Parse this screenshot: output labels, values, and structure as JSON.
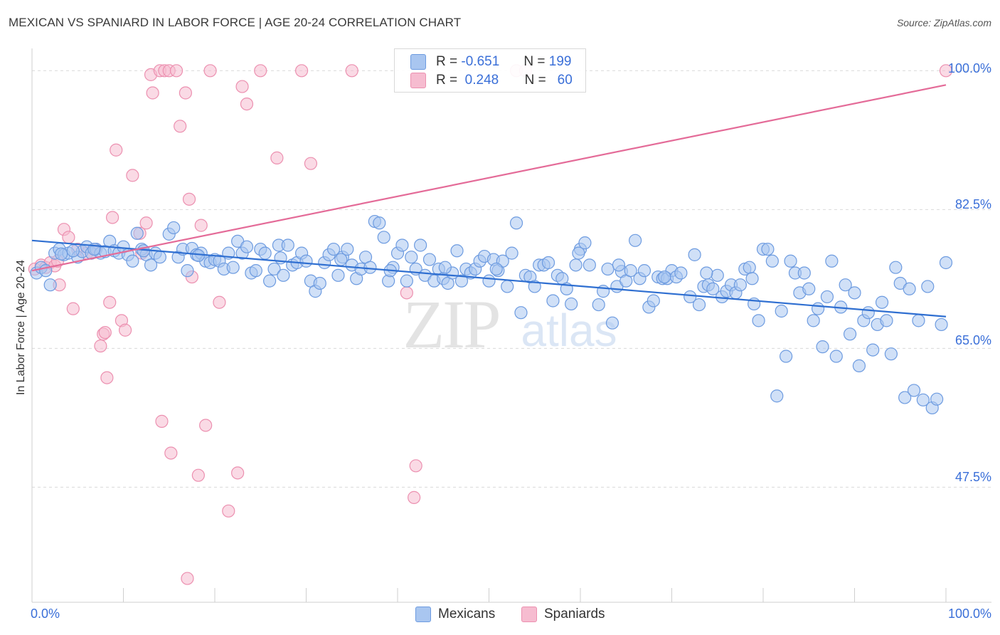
{
  "header": {
    "title": "MEXICAN VS SPANIARD IN LABOR FORCE | AGE 20-24 CORRELATION CHART",
    "source": "Source: ZipAtlas.com"
  },
  "watermark": {
    "zip": "ZIP",
    "atlas": "atlas"
  },
  "legend": {
    "r_label": "R =",
    "n_label": "N =",
    "mexicans": {
      "r": "-0.651",
      "n": "199"
    },
    "spaniards": {
      "r": "0.248",
      "n": "60"
    }
  },
  "colors": {
    "mexican_fill": "#a9c6f0",
    "mexican_stroke": "#6d9be0",
    "mexican_line": "#2f6fd1",
    "spaniard_fill": "#f6bcd0",
    "spaniard_stroke": "#ec90b0",
    "spaniard_line": "#e46b98",
    "tick_text": "#3a6fd8",
    "grid": "#d9d9d9"
  },
  "chart_data": {
    "type": "scatter",
    "title": "MEXICAN VS SPANIARD IN LABOR FORCE | AGE 20-24 CORRELATION CHART",
    "xlabel": "",
    "ylabel": "In Labor Force | Age 20-24",
    "x_tick_labels": [
      "0.0%",
      "100.0%"
    ],
    "y_tick_labels": [
      "47.5%",
      "65.0%",
      "82.5%",
      "100.0%"
    ],
    "xlim": [
      0,
      100
    ],
    "ylim": [
      33,
      102
    ],
    "y_grid": [
      47.5,
      65.0,
      82.5,
      100.0
    ],
    "grid": true,
    "legend_position": "top-center",
    "series": [
      {
        "name": "Mexicans",
        "color": "#a9c6f0",
        "trend": {
          "x": [
            0,
            100
          ],
          "y": [
            78.6,
            69.0
          ]
        },
        "points": [
          [
            0.5,
            74.5
          ],
          [
            1.0,
            75.2
          ],
          [
            1.5,
            74.8
          ],
          [
            2.0,
            73.0
          ],
          [
            2.5,
            77.0
          ],
          [
            3.0,
            77.5
          ],
          [
            3.5,
            76.8
          ],
          [
            4.0,
            77.0
          ],
          [
            5.0,
            76.5
          ],
          [
            5.5,
            77.2
          ],
          [
            6.0,
            77.8
          ],
          [
            6.5,
            77.0
          ],
          [
            7.0,
            77.5
          ],
          [
            7.5,
            77.0
          ],
          [
            8.0,
            77.2
          ],
          [
            8.5,
            78.5
          ],
          [
            9.0,
            77.3
          ],
          [
            9.5,
            77.0
          ],
          [
            10.0,
            77.8
          ],
          [
            10.5,
            76.8
          ],
          [
            11.0,
            76.0
          ],
          [
            11.5,
            79.5
          ],
          [
            12.0,
            77.5
          ],
          [
            12.5,
            76.8
          ],
          [
            13.0,
            75.5
          ],
          [
            13.5,
            77.0
          ],
          [
            14.0,
            76.5
          ],
          [
            15.0,
            79.4
          ],
          [
            15.5,
            80.2
          ],
          [
            16.0,
            76.5
          ],
          [
            16.5,
            77.5
          ],
          [
            17.0,
            74.8
          ],
          [
            17.5,
            77.6
          ],
          [
            18.0,
            76.8
          ],
          [
            18.5,
            77.0
          ],
          [
            19.0,
            76.0
          ],
          [
            19.5,
            75.8
          ],
          [
            20.0,
            76.2
          ],
          [
            20.5,
            76.0
          ],
          [
            21.0,
            75.0
          ],
          [
            21.5,
            77.0
          ],
          [
            22.0,
            75.2
          ],
          [
            22.5,
            78.5
          ],
          [
            23.0,
            77.0
          ],
          [
            23.5,
            77.8
          ],
          [
            24.0,
            74.5
          ],
          [
            24.5,
            74.8
          ],
          [
            25.0,
            77.5
          ],
          [
            25.5,
            77.0
          ],
          [
            26.0,
            73.5
          ],
          [
            26.5,
            75.0
          ],
          [
            27.0,
            78.0
          ],
          [
            27.5,
            74.2
          ],
          [
            28.0,
            78.0
          ],
          [
            28.5,
            75.5
          ],
          [
            29.0,
            75.8
          ],
          [
            29.5,
            77.0
          ],
          [
            30.0,
            76.0
          ],
          [
            30.5,
            73.5
          ],
          [
            31.0,
            72.2
          ],
          [
            31.5,
            73.2
          ],
          [
            32.0,
            75.8
          ],
          [
            32.5,
            76.8
          ],
          [
            33.0,
            77.5
          ],
          [
            33.5,
            74.2
          ],
          [
            34.0,
            76.5
          ],
          [
            34.5,
            77.5
          ],
          [
            35.0,
            75.5
          ],
          [
            35.5,
            73.8
          ],
          [
            36.0,
            75.0
          ],
          [
            36.5,
            76.5
          ],
          [
            37.0,
            75.2
          ],
          [
            37.5,
            81.0
          ],
          [
            38.0,
            80.8
          ],
          [
            38.5,
            79.0
          ],
          [
            39.0,
            73.5
          ],
          [
            39.5,
            75.2
          ],
          [
            40.0,
            77.0
          ],
          [
            40.5,
            78.0
          ],
          [
            41.0,
            73.5
          ],
          [
            41.5,
            76.5
          ],
          [
            42.0,
            75.0
          ],
          [
            42.5,
            78.0
          ],
          [
            43.0,
            74.2
          ],
          [
            43.5,
            76.2
          ],
          [
            44.0,
            73.5
          ],
          [
            44.5,
            75.0
          ],
          [
            45.0,
            73.8
          ],
          [
            45.5,
            73.2
          ],
          [
            46.0,
            74.5
          ],
          [
            46.5,
            77.3
          ],
          [
            47.0,
            73.5
          ],
          [
            47.5,
            75.0
          ],
          [
            48.0,
            74.5
          ],
          [
            48.5,
            75.0
          ],
          [
            49.0,
            76.0
          ],
          [
            49.5,
            76.6
          ],
          [
            50.0,
            73.5
          ],
          [
            50.5,
            76.2
          ],
          [
            51.0,
            74.8
          ],
          [
            51.5,
            76.0
          ],
          [
            52.0,
            72.8
          ],
          [
            52.5,
            77.0
          ],
          [
            53.0,
            80.8
          ],
          [
            53.5,
            69.5
          ],
          [
            54.0,
            74.2
          ],
          [
            54.5,
            74.0
          ],
          [
            55.0,
            72.8
          ],
          [
            55.5,
            75.5
          ],
          [
            56.0,
            75.5
          ],
          [
            56.5,
            75.8
          ],
          [
            57.0,
            71.0
          ],
          [
            57.5,
            74.2
          ],
          [
            58.0,
            73.8
          ],
          [
            58.5,
            72.5
          ],
          [
            59.0,
            70.6
          ],
          [
            59.5,
            75.5
          ],
          [
            60.0,
            77.5
          ],
          [
            60.5,
            78.3
          ],
          [
            61.0,
            75.5
          ],
          [
            62.0,
            70.5
          ],
          [
            62.5,
            72.2
          ],
          [
            63.0,
            75.0
          ],
          [
            63.5,
            68.2
          ],
          [
            64.0,
            72.8
          ],
          [
            64.5,
            74.7
          ],
          [
            65.0,
            73.5
          ],
          [
            65.5,
            74.8
          ],
          [
            66.0,
            78.6
          ],
          [
            66.5,
            73.8
          ],
          [
            67.0,
            74.8
          ],
          [
            67.5,
            70.2
          ],
          [
            68.0,
            71.0
          ],
          [
            68.5,
            74.0
          ],
          [
            69.0,
            73.8
          ],
          [
            69.5,
            73.8
          ],
          [
            70.0,
            74.8
          ],
          [
            70.5,
            74.0
          ],
          [
            71.0,
            74.5
          ],
          [
            72.0,
            71.5
          ],
          [
            72.5,
            76.8
          ],
          [
            73.0,
            70.5
          ],
          [
            73.5,
            72.8
          ],
          [
            74.0,
            73.0
          ],
          [
            74.5,
            72.5
          ],
          [
            75.0,
            74.2
          ],
          [
            75.5,
            71.5
          ],
          [
            76.0,
            72.2
          ],
          [
            76.5,
            73.0
          ],
          [
            77.0,
            72.0
          ],
          [
            77.5,
            73.0
          ],
          [
            78.0,
            75.0
          ],
          [
            78.5,
            75.2
          ],
          [
            79.0,
            70.6
          ],
          [
            79.5,
            68.5
          ],
          [
            80.0,
            77.5
          ],
          [
            80.5,
            77.5
          ],
          [
            81.0,
            76.0
          ],
          [
            81.5,
            59.0
          ],
          [
            82.0,
            69.7
          ],
          [
            82.5,
            64.0
          ],
          [
            83.0,
            76.0
          ],
          [
            83.5,
            74.5
          ],
          [
            84.0,
            72.0
          ],
          [
            84.5,
            74.5
          ],
          [
            85.0,
            72.5
          ],
          [
            85.5,
            68.5
          ],
          [
            86.0,
            70.0
          ],
          [
            86.5,
            65.2
          ],
          [
            87.0,
            71.5
          ],
          [
            87.5,
            76.0
          ],
          [
            88.0,
            64.0
          ],
          [
            88.5,
            70.2
          ],
          [
            89.0,
            73.0
          ],
          [
            89.5,
            66.8
          ],
          [
            90.0,
            72.0
          ],
          [
            90.5,
            62.8
          ],
          [
            91.0,
            68.5
          ],
          [
            91.5,
            69.5
          ],
          [
            92.0,
            64.8
          ],
          [
            92.5,
            68.0
          ],
          [
            93.0,
            70.8
          ],
          [
            93.5,
            68.5
          ],
          [
            94.0,
            64.3
          ],
          [
            94.5,
            75.2
          ],
          [
            95.0,
            73.2
          ],
          [
            95.5,
            58.8
          ],
          [
            96.0,
            72.5
          ],
          [
            96.5,
            59.7
          ],
          [
            97.0,
            68.5
          ],
          [
            97.5,
            58.5
          ],
          [
            98.0,
            72.8
          ],
          [
            98.5,
            57.5
          ],
          [
            99.0,
            58.6
          ],
          [
            99.5,
            68.0
          ],
          [
            100.0,
            75.8
          ],
          [
            4.5,
            77.3
          ],
          [
            3.2,
            76.9
          ],
          [
            6.8,
            77.5
          ],
          [
            12.2,
            77.3
          ],
          [
            18.2,
            76.7
          ],
          [
            27.2,
            76.4
          ],
          [
            33.8,
            76.2
          ],
          [
            39.2,
            74.8
          ],
          [
            45.2,
            75.2
          ],
          [
            50.8,
            75.0
          ],
          [
            59.8,
            77.0
          ],
          [
            64.2,
            75.5
          ],
          [
            69.2,
            74.0
          ],
          [
            73.8,
            74.5
          ],
          [
            78.8,
            73.8
          ]
        ]
      },
      {
        "name": "Spaniards",
        "color": "#f6bcd0",
        "trend": {
          "x": [
            0,
            100
          ],
          "y": [
            74.8,
            98.2
          ]
        },
        "points": [
          [
            0.3,
            75.0
          ],
          [
            1.0,
            75.5
          ],
          [
            1.5,
            75.2
          ],
          [
            2.0,
            75.8
          ],
          [
            2.5,
            75.4
          ],
          [
            3.0,
            73.0
          ],
          [
            3.5,
            80.0
          ],
          [
            4.0,
            79.0
          ],
          [
            4.5,
            70.0
          ],
          [
            5.0,
            77.5
          ],
          [
            6.0,
            77.0
          ],
          [
            7.0,
            77.5
          ],
          [
            7.5,
            65.3
          ],
          [
            7.8,
            66.8
          ],
          [
            8.0,
            67.0
          ],
          [
            8.2,
            61.3
          ],
          [
            8.5,
            70.8
          ],
          [
            8.8,
            81.5
          ],
          [
            9.2,
            90.0
          ],
          [
            9.8,
            68.5
          ],
          [
            10.2,
            67.3
          ],
          [
            11.0,
            86.8
          ],
          [
            11.8,
            79.5
          ],
          [
            12.0,
            77.0
          ],
          [
            12.5,
            80.8
          ],
          [
            13.0,
            99.5
          ],
          [
            13.2,
            97.2
          ],
          [
            14.0,
            100.0
          ],
          [
            14.2,
            55.8
          ],
          [
            14.5,
            100.0
          ],
          [
            15.0,
            100.0
          ],
          [
            15.2,
            51.8
          ],
          [
            15.8,
            100.0
          ],
          [
            16.2,
            93.0
          ],
          [
            16.8,
            97.2
          ],
          [
            17.0,
            36.0
          ],
          [
            17.2,
            83.8
          ],
          [
            17.5,
            74.0
          ],
          [
            18.2,
            49.0
          ],
          [
            18.5,
            80.5
          ],
          [
            19.0,
            55.3
          ],
          [
            19.5,
            100.0
          ],
          [
            20.5,
            70.8
          ],
          [
            21.5,
            44.5
          ],
          [
            22.5,
            49.3
          ],
          [
            23.0,
            98.0
          ],
          [
            23.5,
            95.8
          ],
          [
            25.0,
            100.0
          ],
          [
            26.8,
            89.0
          ],
          [
            29.5,
            100.0
          ],
          [
            30.5,
            88.3
          ],
          [
            35.0,
            100.0
          ],
          [
            41.0,
            72.0
          ],
          [
            41.8,
            46.2
          ],
          [
            42.0,
            50.2
          ],
          [
            53.0,
            100.0
          ],
          [
            54.0,
            100.0
          ],
          [
            100.0,
            100.0
          ],
          [
            6.5,
            77.0
          ],
          [
            2.8,
            76.0
          ]
        ]
      }
    ]
  },
  "bottom_legend": {
    "mexicans": "Mexicans",
    "spaniards": "Spaniards"
  },
  "axis": {
    "x_left": "0.0%",
    "x_right": "100.0%",
    "y_ticks": [
      "47.5%",
      "65.0%",
      "82.5%",
      "100.0%"
    ],
    "y_label": "In Labor Force | Age 20-24"
  }
}
